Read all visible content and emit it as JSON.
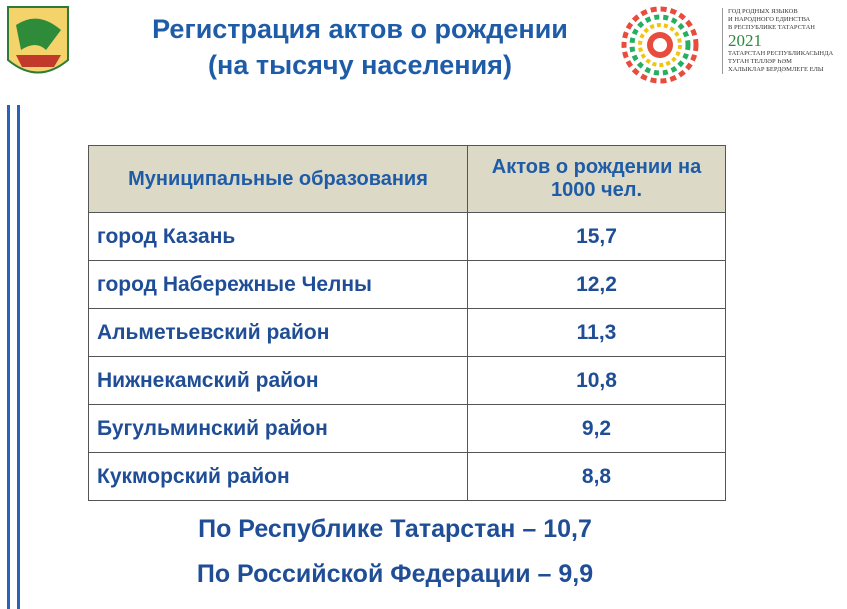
{
  "header": {
    "title_lines": [
      "Регистрация актов о рождении",
      "(на тысячу населения)"
    ],
    "badge": {
      "lines_top": [
        "ГОД РОДНЫХ ЯЗЫКОВ",
        "И НАРОДНОГО ЕДИНСТВА",
        "В РЕСПУБЛИКЕ ТАТАРСТАН"
      ],
      "year": "2021",
      "lines_bottom": [
        "ТАТАРСТАН РЕСПУБЛИКАСЫНДА",
        "ТУГАН ТЕЛЛӘР ҺӘМ",
        "ХАЛЫКЛАР БЕРДӘМЛЕГЕ ЕЛЫ"
      ]
    }
  },
  "table": {
    "columns": [
      "Муниципальные образования",
      "Актов о рождении на 1000 чел."
    ],
    "rows": [
      [
        "город Казань",
        "15,7"
      ],
      [
        "город Набережные Челны",
        "12,2"
      ],
      [
        "Альметьевский район",
        "11,3"
      ],
      [
        "Нижнекамский район",
        "10,8"
      ],
      [
        "Бугульминский район",
        "9,2"
      ],
      [
        "Кукморский район",
        "8,8"
      ]
    ]
  },
  "footer": [
    "По Республике Татарстан – 10,7",
    "По Российской Федерации – 9,9"
  ]
}
